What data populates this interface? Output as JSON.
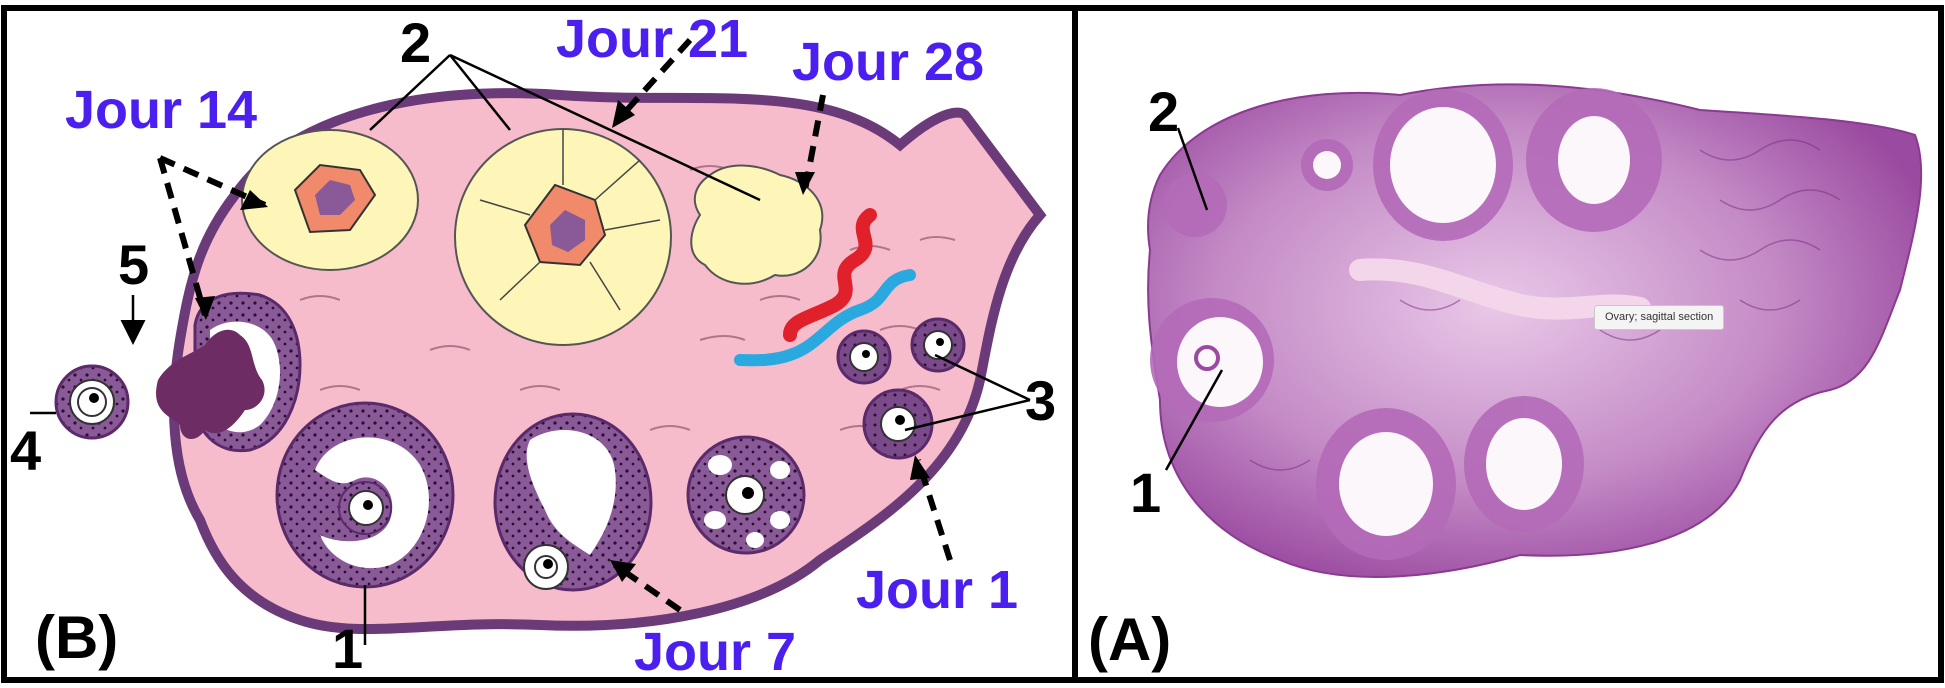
{
  "panel_b": {
    "title": "(B)",
    "labels": {
      "n1": "1",
      "n2": "2",
      "n3": "3",
      "n4": "4",
      "n5": "5",
      "day1": "Jour 1",
      "day7": "Jour 7",
      "day14": "Jour 14",
      "day21": "Jour 21",
      "day28": "Jour 28"
    }
  },
  "panel_a": {
    "title": "(A)",
    "labels": {
      "n1": "1",
      "n2": "2"
    },
    "tooltip": "Ovary; sagittal section"
  },
  "colors": {
    "day_label": "#4a1ff0",
    "stroma": "#f7bccb",
    "follicle_wall": "#8a5a98",
    "corpus": "#fdf6b8",
    "histology": "#9a4aa0"
  }
}
